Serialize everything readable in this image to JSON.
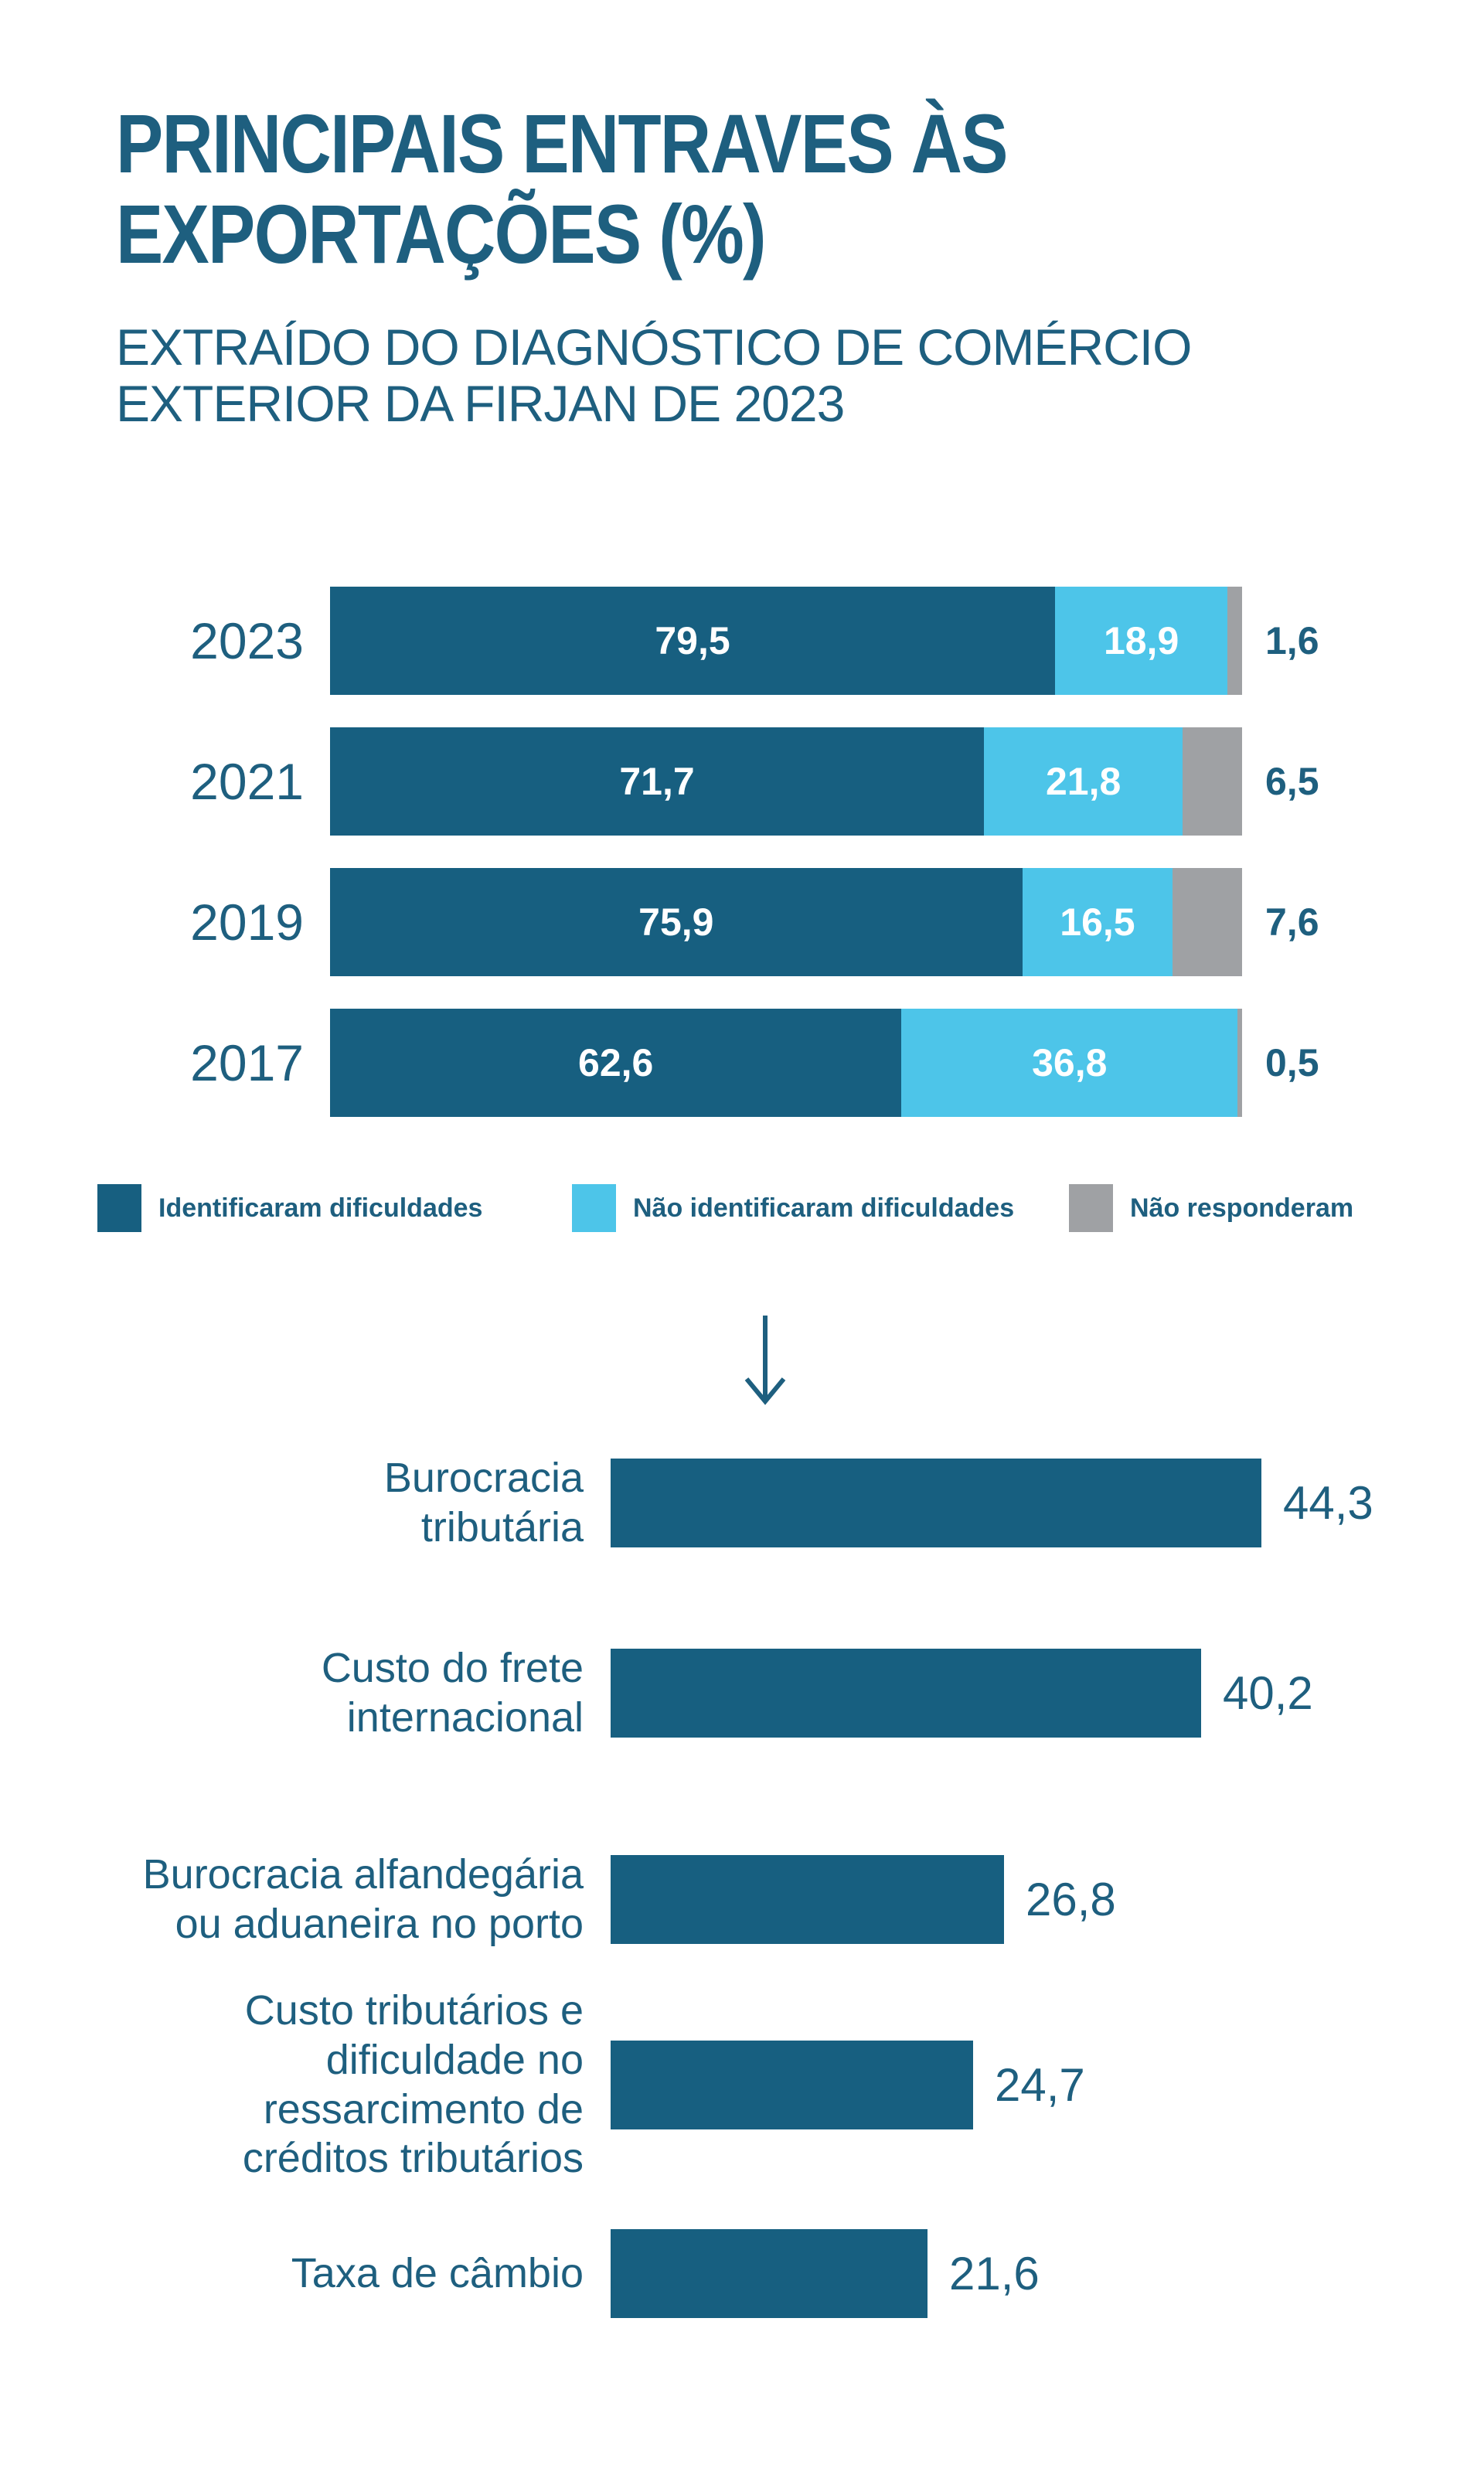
{
  "page": {
    "background": "#FFFFFF"
  },
  "colors": {
    "dark_teal": "#175F80",
    "light_blue": "#4DC5E9",
    "gray": "#9FA1A4",
    "text": "#1E5F7F",
    "bar_value_text": "#FFFFFF"
  },
  "header": {
    "title_line1": "PRINCIPAIS ENTRAVES ÀS",
    "title_line2": "EXPORTAÇÕES (%)",
    "subtitle_line1": "EXTRAÍDO DO DIAGNÓSTICO DE COMÉRCIO",
    "subtitle_line2": "EXTERIOR DA FIRJAN DE 2023"
  },
  "chart_data": [
    {
      "type": "bar",
      "subtype": "stacked-horizontal-percent",
      "title": "Principais entraves às exportações (%)",
      "categories": [
        "2023",
        "2021",
        "2019",
        "2017"
      ],
      "series": [
        {
          "name": "Identificaram dificuldades",
          "slug": "identificaram-dificuldades",
          "color": "#175F80",
          "values": [
            79.5,
            71.7,
            75.9,
            62.6
          ],
          "labels": [
            "79,5",
            "71,7",
            "75,9",
            "62,6"
          ],
          "label_inside": true
        },
        {
          "name": "Não identificaram dificuldades",
          "slug": "nao-identificaram-dificuldades",
          "color": "#4DC5E9",
          "values": [
            18.9,
            21.8,
            16.5,
            36.8
          ],
          "labels": [
            "18,9",
            "21,8",
            "16,5",
            "36,8"
          ],
          "label_inside": true
        },
        {
          "name": "Não responderam",
          "slug": "nao-responderam",
          "color": "#9FA1A4",
          "values": [
            1.6,
            6.5,
            7.6,
            0.5
          ],
          "labels": [
            "1,6",
            "6,5",
            "7,6",
            "0,5"
          ],
          "label_inside": false,
          "label_position": "outside-right"
        }
      ],
      "xlim": [
        0,
        100
      ],
      "grid": false,
      "legend_position": "bottom"
    },
    {
      "type": "bar",
      "subtype": "horizontal",
      "title": "",
      "categories": [
        "Burocracia tributária",
        "Custo do frete internacional",
        "Burocracia alfandegária ou aduaneira no porto",
        "Custo tributários e dificuldade no ressarcimento de créditos tributários",
        "Taxa de câmbio"
      ],
      "category_lines": [
        [
          "Burocracia",
          "tributária"
        ],
        [
          "Custo do frete",
          "internacional"
        ],
        [
          "Burocracia alfandegária",
          "ou aduaneira no porto"
        ],
        [
          "Custo tributários e",
          "dificuldade no",
          "ressarcimento de",
          "créditos tributários"
        ],
        [
          "Taxa de câmbio"
        ]
      ],
      "values": [
        44.3,
        40.2,
        26.8,
        24.7,
        21.6
      ],
      "labels": [
        "44,3",
        "40,2",
        "26,8",
        "24,7",
        "21,6"
      ],
      "bar_color": "#175F80",
      "xlim": [
        0,
        50
      ],
      "grid": false
    }
  ]
}
